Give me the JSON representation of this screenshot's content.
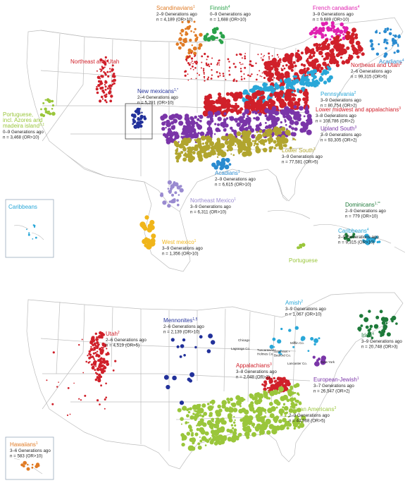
{
  "panel_top": {
    "inset_label": "Caribbeans",
    "labels": [
      {
        "id": "scandinavians",
        "name": "Scandinavians",
        "sup": "1",
        "gen": "2–9 Generations ago",
        "n": "n = 4,189 (OR>10)",
        "color": "#e07b25"
      },
      {
        "id": "finnish",
        "name": "Finnish",
        "sup": "4",
        "gen": "0–9 Generations ago",
        "n": "n = 1,688 (OR>10)",
        "color": "#2aa24a"
      },
      {
        "id": "french-canadians",
        "name": "French canadians",
        "sup": "4",
        "gen": "3–9 Generations ago",
        "n": "n = 9,689 (OR>10)",
        "color": "#e020b0"
      },
      {
        "id": "acadians-ne",
        "name": "Acadians",
        "sup": "4",
        "gen": "",
        "n": "",
        "color": "#2a8bd0"
      },
      {
        "id": "northeast-utah-west",
        "name": "Northeast and Utah",
        "sup": "",
        "gen": "",
        "n": "",
        "color": "#d0202a"
      },
      {
        "id": "northeast-utah",
        "name": "Northeast and Utah",
        "sup": "2",
        "gen": "2–6 Generations ago",
        "n": "n = 99,315 (OR>5)",
        "color": "#d0202a"
      },
      {
        "id": "new-mexicans",
        "name": "New mexicans",
        "sup": "1,*",
        "gen": "2–4 Generations ago",
        "n": "n = 5,291 (OR>10)",
        "color": "#22319a"
      },
      {
        "id": "pennsylvania",
        "name": "Pennsylvania",
        "sup": "2",
        "gen": "3–9 Generations ago",
        "n": "n = 80,754 (OR>2)",
        "color": "#29a7d8"
      },
      {
        "id": "portuguese-azores",
        "name": "Portuguese, incl. Azores and madeira island",
        "sup": "3,‡",
        "gen": "0–9 Generations ago",
        "n": "n = 3,468 (OR>10)",
        "color": "#9ac63b"
      },
      {
        "id": "lower-midwest",
        "name": "Lower midwest and appalachians",
        "sup": "3",
        "gen": "3–8 Generations ago",
        "n": "n = 108,786 (OR>2)",
        "color": "#d0202a"
      },
      {
        "id": "upland-south",
        "name": "Upland South",
        "sup": "3",
        "gen": "3–9 Generations ago",
        "n": "n = 93,305 (OR>2)",
        "color": "#7a35a8"
      },
      {
        "id": "lower-south",
        "name": "Lower South",
        "sup": "3",
        "gen": "3–9 Generations ago",
        "n": "n = 77,581 (OR>5)",
        "color": "#b1a52e"
      },
      {
        "id": "acadians-la",
        "name": "Acadians",
        "sup": "1",
        "gen": "2–9 Generations ago",
        "n": "n = 6,615 (OR>10)",
        "color": "#2a8bd0"
      },
      {
        "id": "northeast-mexico",
        "name": "Northeast Mexico",
        "sup": "1",
        "gen": "3–9 Generations ago",
        "n": "n = 6,311 (OR>10)",
        "color": "#9a8bd0"
      },
      {
        "id": "dominicans",
        "name": "Dominicans",
        "sup": "1,**",
        "gen": "2–9 Generations ago",
        "n": "n = 779 (OR>10)",
        "color": "#1e7a3a"
      },
      {
        "id": "caribbeans",
        "name": "Caribbeans",
        "sup": "4",
        "gen": "2–9 Generations ago",
        "n": "n = 9,315 (OR>10)",
        "color": "#29a7d8"
      },
      {
        "id": "west-mexico",
        "name": "West mexico",
        "sup": "1",
        "gen": "3–9 Generations ago",
        "n": "n = 1,356 (OR>10)",
        "color": "#f0b51a"
      },
      {
        "id": "portuguese-carib",
        "name": "Portuguese",
        "sup": "",
        "gen": "",
        "n": "",
        "color": "#9ac63b"
      }
    ]
  },
  "panel_bottom": {
    "labels": [
      {
        "id": "amish",
        "name": "Amish",
        "sup": "2",
        "gen": "3–9 Generations ago",
        "n": "n = 1,067 (OR>10)",
        "color": "#29a7d8"
      },
      {
        "id": "mennonites",
        "name": "Mennonites",
        "sup": "1,§",
        "gen": "2–6 Generations ago",
        "n": "n = 2,139 (OR>10)",
        "color": "#22319a"
      },
      {
        "id": "utah",
        "name": "Utah",
        "sup": "2",
        "gen": "2–6 Generations ago",
        "n": "n = 4,519 (OR>5)",
        "color": "#d0202a"
      },
      {
        "id": "irish",
        "name": "Irish",
        "sup": "4",
        "gen": "3–9 Generations ago",
        "n": "n = 20,748 (OR>3)",
        "color": "#1e7a3a"
      },
      {
        "id": "appalachians",
        "name": "Appalachians",
        "sup": "3",
        "gen": "3–8 Generations ago",
        "n": "n = 2,048 (OR>2)",
        "color": "#d0202a"
      },
      {
        "id": "european-jewish",
        "name": "European-Jewish",
        "sup": "1",
        "gen": "3–7 Generations ago",
        "n": "n = 26,547 (OR>2)",
        "color": "#7a35a8"
      },
      {
        "id": "african-americans",
        "name": "African Americans",
        "sup": "3",
        "gen": "2–9 Generations ago",
        "n": "n = 44,968 (OR>5)",
        "color": "#9ac63b"
      },
      {
        "id": "hawaiians",
        "name": "Hawaiians",
        "sup": "1",
        "gen": "3–6 Generations ago",
        "n": "n = 583 (OR>10)",
        "color": "#e07b25"
      }
    ],
    "places": [
      {
        "id": "chicago",
        "text": "Chicago"
      },
      {
        "id": "lagrange",
        "text": "Lagrange Co."
      },
      {
        "id": "tuscarawas",
        "text": "Tuscarawas+\nHolmes Co."
      },
      {
        "id": "somerset",
        "text": "Somerset +\nBedford Co."
      },
      {
        "id": "mifflin",
        "text": "Mifflin Co."
      },
      {
        "id": "lancaster",
        "text": "Lancaster Co."
      },
      {
        "id": "new-york",
        "text": "New York"
      }
    ]
  }
}
